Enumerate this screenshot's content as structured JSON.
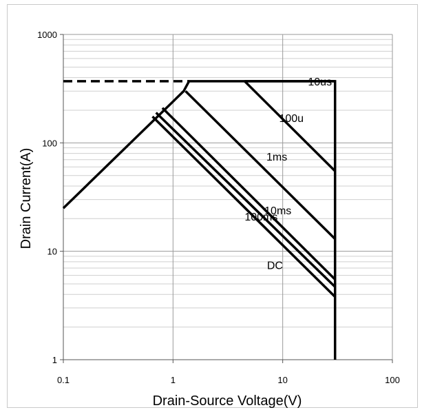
{
  "chart_data": {
    "type": "line",
    "title": "",
    "xlabel": "Drain-Source Voltage(V)",
    "ylabel": "Drain Current(A)",
    "x_scale": "log",
    "y_scale": "log",
    "xlim": [
      0.1,
      100
    ],
    "ylim": [
      1,
      1000
    ],
    "x_ticks": [
      0.1,
      1,
      10,
      100
    ],
    "x_tick_labels": [
      "0.1",
      "1",
      "10",
      "100"
    ],
    "y_ticks": [
      1,
      10,
      100,
      1000
    ],
    "y_tick_labels": [
      "1",
      "10",
      "100",
      "1000"
    ],
    "grid": true,
    "current_limit": {
      "x": [
        0.1,
        1.4
      ],
      "y": [
        370,
        370
      ],
      "style": "dashed"
    },
    "boundary": {
      "x": [
        0.1,
        1.25,
        1.4,
        30,
        30,
        30
      ],
      "y": [
        25,
        300,
        370,
        370,
        100,
        1
      ]
    },
    "series": [
      {
        "name": "10us",
        "x": [
          4.5,
          30
        ],
        "y": [
          370,
          370
        ]
      },
      {
        "name": "100u",
        "x": [
          4.5,
          30
        ],
        "y": [
          370,
          55
        ]
      },
      {
        "name": "1ms",
        "x": [
          1.3,
          30
        ],
        "y": [
          300,
          13
        ]
      },
      {
        "name": "10ms",
        "x": [
          0.8,
          30
        ],
        "y": [
          210,
          5.5
        ]
      },
      {
        "name": "100ms",
        "x": [
          0.7,
          30
        ],
        "y": [
          190,
          4.7
        ]
      },
      {
        "name": "DC",
        "x": [
          0.65,
          30
        ],
        "y": [
          175,
          3.8
        ]
      }
    ],
    "labels": [
      "10us",
      "100u",
      "1ms",
      "10ms",
      "100ms",
      "DC"
    ]
  }
}
